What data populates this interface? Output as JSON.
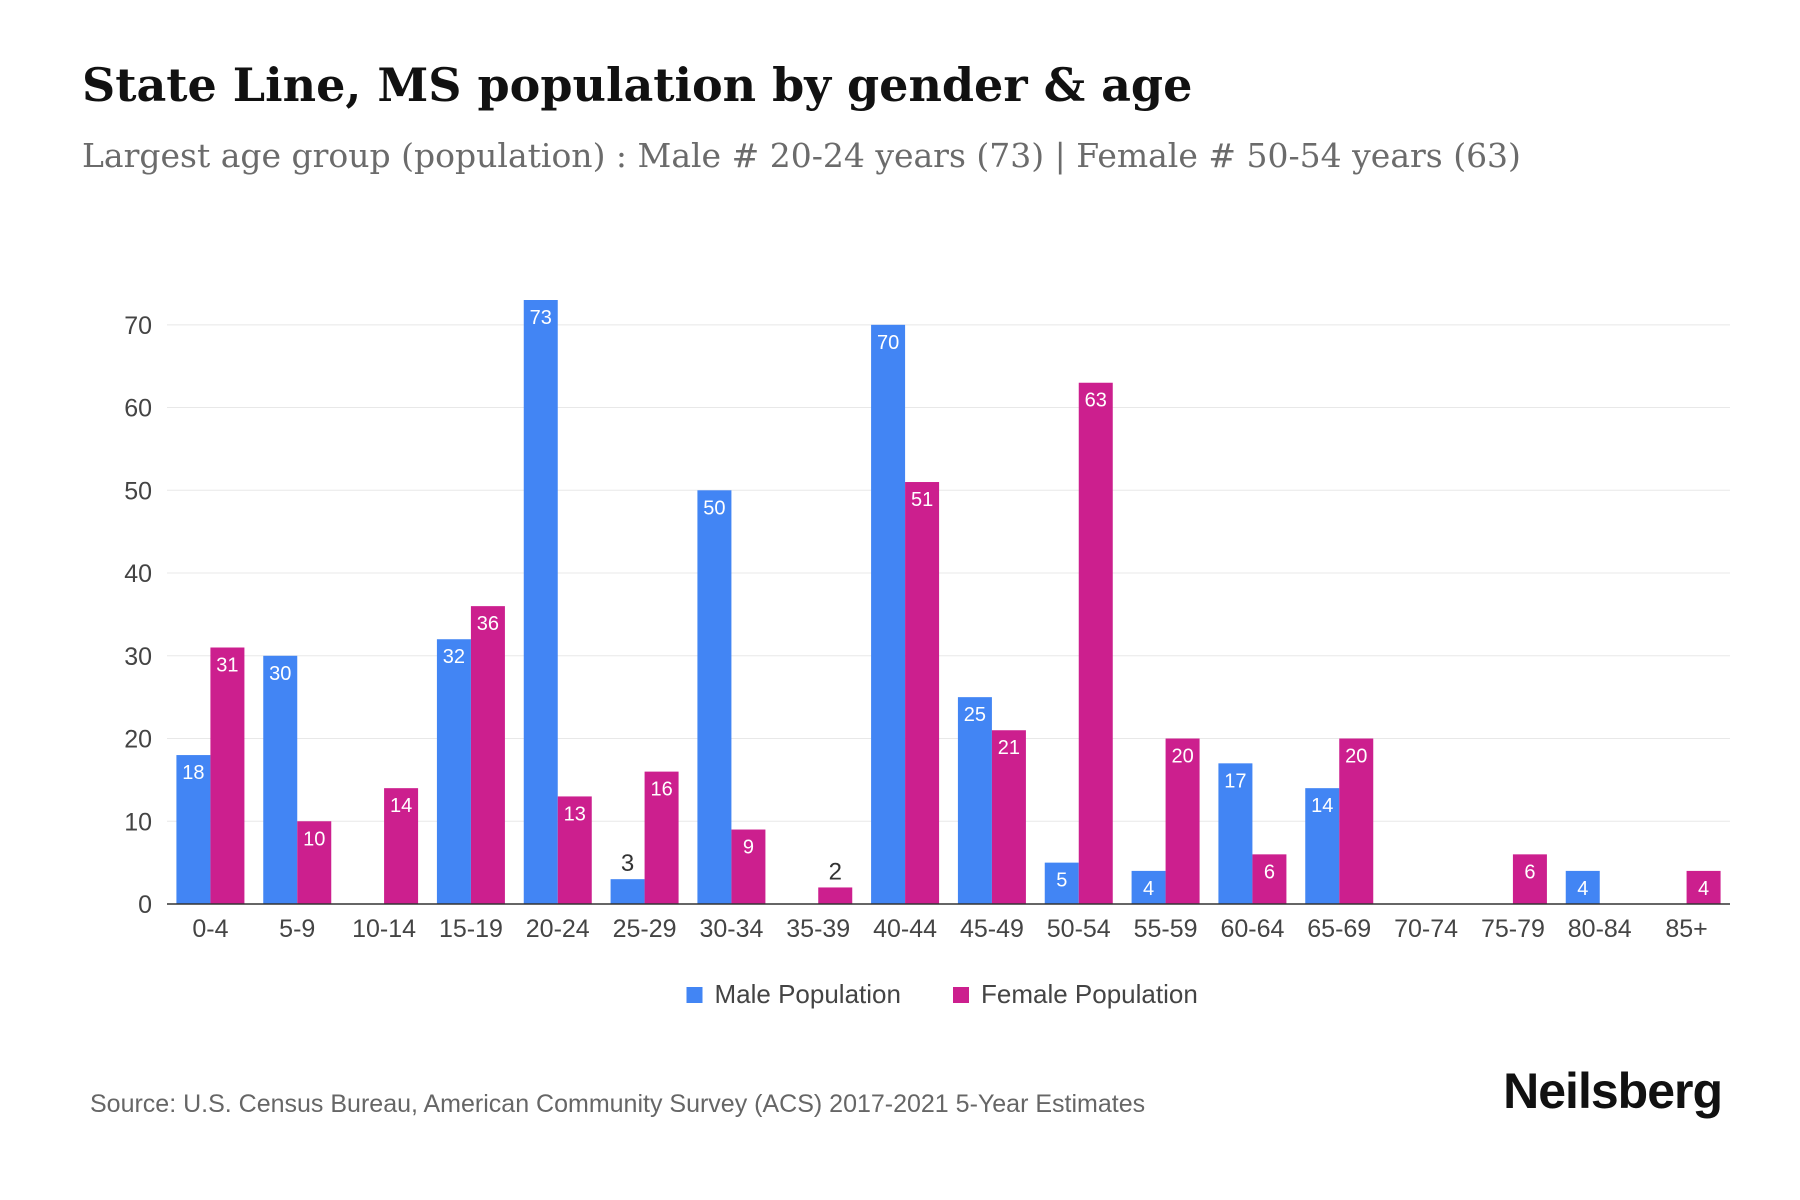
{
  "chart_data": {
    "type": "bar",
    "title": "State Line, MS population by gender & age",
    "subtitle": "Largest age group (population) : Male # 20-24 years (73) | Female # 50-54 years (63)",
    "categories": [
      "0-4",
      "5-9",
      "10-14",
      "15-19",
      "20-24",
      "25-29",
      "30-34",
      "35-39",
      "40-44",
      "45-49",
      "50-54",
      "55-59",
      "60-64",
      "65-69",
      "70-74",
      "75-79",
      "80-84",
      "85+"
    ],
    "series": [
      {
        "name": "Male Population",
        "color": "#4285f4",
        "values": [
          18,
          30,
          0,
          32,
          73,
          3,
          50,
          0,
          70,
          25,
          5,
          4,
          17,
          14,
          0,
          0,
          4,
          0
        ]
      },
      {
        "name": "Female Population",
        "color": "#cc1f8e",
        "values": [
          31,
          10,
          14,
          36,
          13,
          16,
          9,
          2,
          51,
          21,
          63,
          20,
          6,
          20,
          0,
          6,
          0,
          4
        ]
      }
    ],
    "yticks": [
      0,
      10,
      20,
      30,
      40,
      50,
      60,
      70
    ],
    "ylim": [
      0,
      73
    ],
    "grid": true,
    "legend_position": "bottom-center"
  },
  "footer": {
    "source": "Source: U.S. Census Bureau, American Community Survey (ACS) 2017-2021 5-Year Estimates",
    "brand": "Neilsberg"
  }
}
